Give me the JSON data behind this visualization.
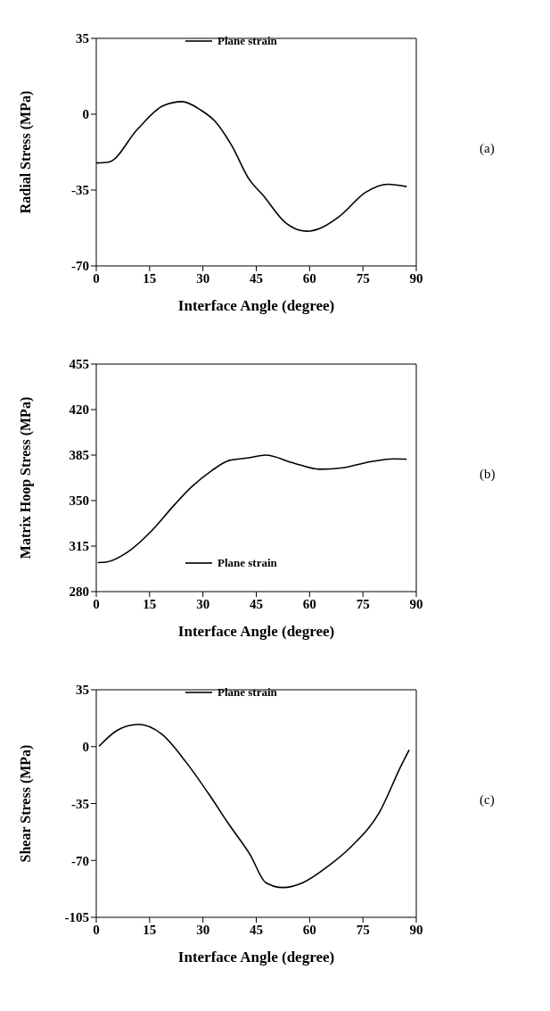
{
  "chart_data": [
    {
      "type": "line",
      "ylabel": "Radial Stress (MPa)",
      "xlabel": "Interface Angle (degree)",
      "annotations": [
        "(a)"
      ],
      "legend": "top",
      "marker": "none",
      "line_style": "solid",
      "xlim": [
        0,
        90
      ],
      "xticks": [
        0,
        15,
        30,
        45,
        60,
        75,
        90
      ],
      "ylim": [
        -70,
        35
      ],
      "yticks": [
        -70,
        -35,
        0,
        35
      ],
      "series": [
        {
          "name": "Plane strain",
          "color": "#000000",
          "x": [
            0,
            3.6,
            11.6,
            18.8,
            24.1,
            29.3,
            33.3,
            38.1,
            42.9,
            46.9,
            53.3,
            59.3,
            62.9,
            68.5,
            75.7,
            82.1,
            87.3
          ],
          "values": [
            -22.5,
            -22,
            -6.9,
            3.9,
            5.8,
            2,
            -3.1,
            -14.5,
            -29.8,
            -37.4,
            -50.2,
            -54,
            -52.7,
            -47,
            -36.1,
            -32.3,
            -33.4
          ]
        }
      ]
    },
    {
      "type": "line",
      "ylabel": "Matrix Hoop Stress (MPa)",
      "xlabel": "Interface Angle (degree)",
      "annotations": [
        "(b)"
      ],
      "legend": "bottom",
      "marker": "none",
      "line_style": "solid",
      "xlim": [
        0,
        90
      ],
      "xticks": [
        0,
        15,
        30,
        45,
        60,
        75,
        90
      ],
      "ylim": [
        280,
        455
      ],
      "yticks": [
        280,
        315,
        350,
        385,
        420,
        455
      ],
      "series": [
        {
          "name": "Plane strain",
          "color": "#000000",
          "x": [
            0.4,
            2.8,
            9.2,
            15.6,
            22,
            26.8,
            32.5,
            37.3,
            42.9,
            47.7,
            54.9,
            62.9,
            69.3,
            77.3,
            83.7,
            87.3
          ],
          "values": [
            302.3,
            302.7,
            311.1,
            326.8,
            346.8,
            360.5,
            373.1,
            380.8,
            382.9,
            385,
            379.4,
            374.1,
            375.2,
            380,
            382.1,
            381.9
          ]
        }
      ]
    },
    {
      "type": "line",
      "ylabel": "Shear Stress (MPa)",
      "xlabel": "Interface Angle (degree)",
      "annotations": [
        "(c)"
      ],
      "legend": "top",
      "marker": "none",
      "line_style": "solid",
      "xlim": [
        0,
        90
      ],
      "xticks": [
        0,
        15,
        30,
        45,
        60,
        75,
        90
      ],
      "ylim": [
        -105,
        35
      ],
      "yticks": [
        -105,
        -70,
        -35,
        0,
        35
      ],
      "series": [
        {
          "name": "Plane strain",
          "color": "#000000",
          "x": [
            0.8,
            6,
            12,
            18.4,
            25.2,
            31.6,
            37.3,
            43.3,
            47.7,
            52.5,
            58.1,
            65.3,
            71.7,
            79.7,
            85.7,
            88
          ],
          "values": [
            0.3,
            10.2,
            13.7,
            7.7,
            -9.4,
            -29,
            -47.8,
            -66.6,
            -83.7,
            -86.7,
            -83.7,
            -73.4,
            -61.5,
            -40.1,
            -11.9,
            -2
          ]
        }
      ]
    }
  ]
}
